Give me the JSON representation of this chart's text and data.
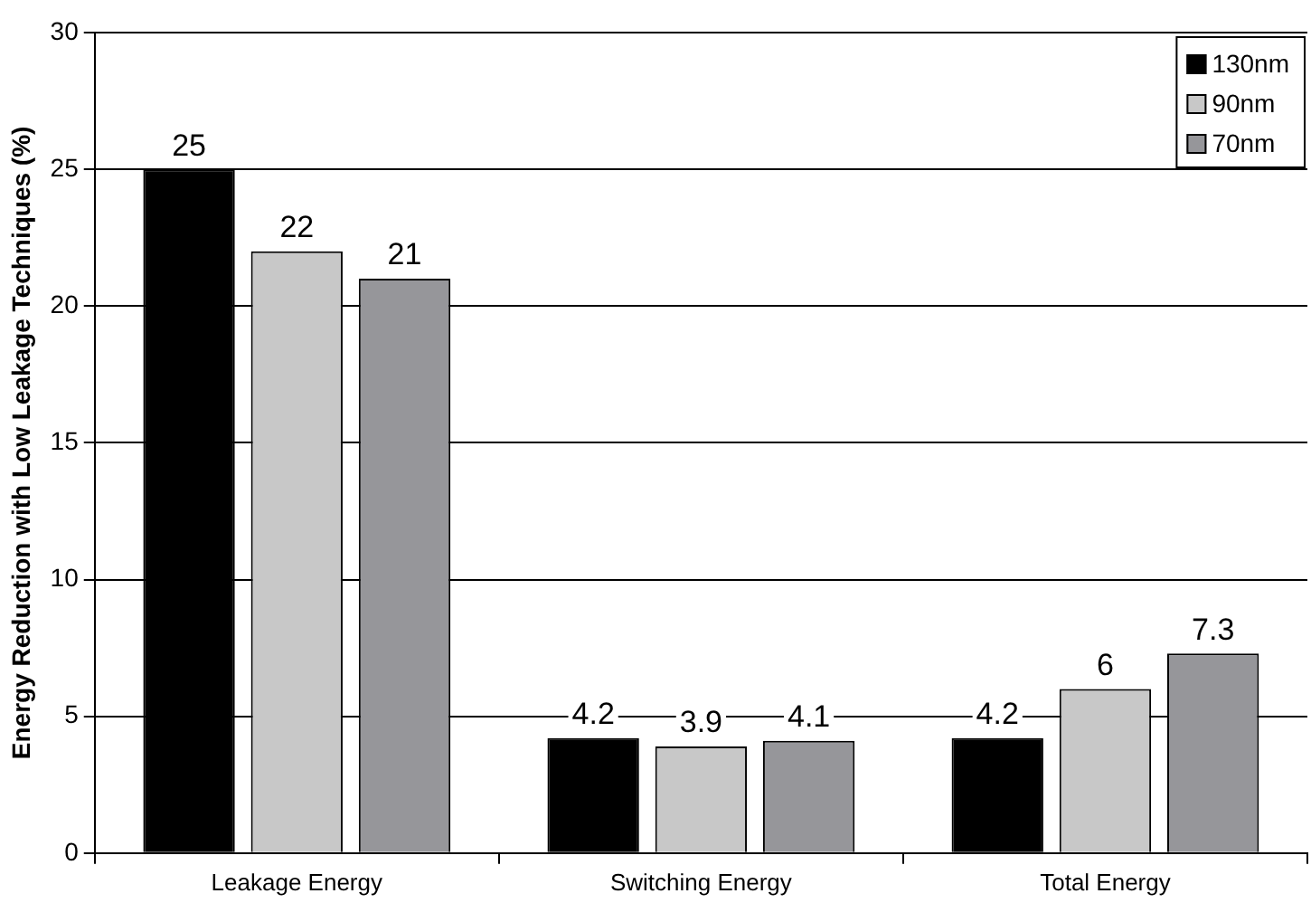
{
  "chart_data": {
    "type": "bar",
    "ylabel": "Energy Reduction with Low Leakage Techniques (%)",
    "categories": [
      "Leakage Energy",
      "Switching Energy",
      "Total Energy"
    ],
    "series": [
      {
        "name": "130nm",
        "color": "#000000",
        "values": [
          25,
          4.2,
          4.2
        ]
      },
      {
        "name": "90nm",
        "color": "#c8c8c8",
        "values": [
          22,
          3.9,
          6
        ]
      },
      {
        "name": "70nm",
        "color": "#96969a",
        "values": [
          21,
          4.1,
          7.3
        ]
      }
    ],
    "ylim": [
      0,
      30
    ],
    "yticks": [
      0,
      5,
      10,
      15,
      20,
      25,
      30
    ],
    "grid": "y",
    "legend": "top right",
    "data_labels": true
  }
}
